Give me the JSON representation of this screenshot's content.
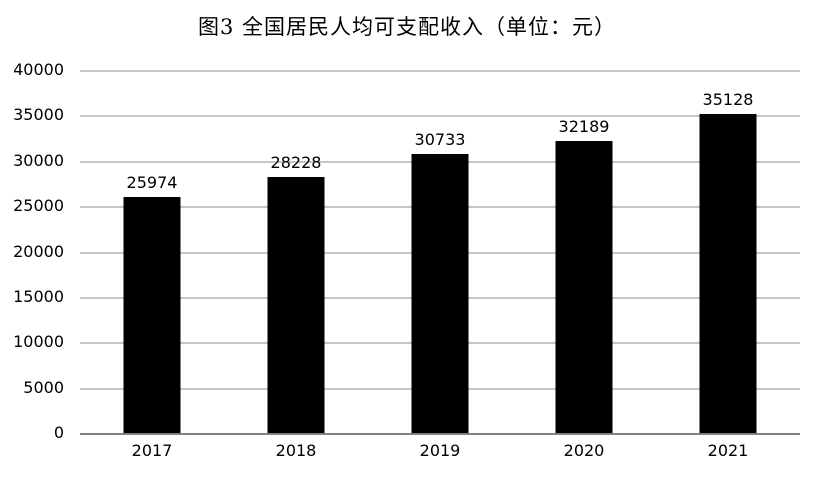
{
  "title": "图3 全国居民人均可支配收入（单位：元）",
  "colors": {
    "background": "#ffffff",
    "bar": "#000000",
    "gridline": "#8c8c8c",
    "axis_line": "#808080",
    "text": "#000000"
  },
  "chart_data": {
    "type": "bar",
    "title": "图3 全国居民人均可支配收入（单位：元）",
    "categories": [
      "2017",
      "2018",
      "2019",
      "2020",
      "2021"
    ],
    "values": [
      25974,
      28228,
      30733,
      32189,
      35128
    ],
    "data_labels": [
      "25974",
      "28228",
      "30733",
      "32189",
      "35128"
    ],
    "xlabel": "",
    "ylabel": "",
    "ylim": [
      0,
      40000
    ],
    "ytick_step": 5000,
    "yticks": [
      0,
      5000,
      10000,
      15000,
      20000,
      25000,
      30000,
      35000,
      40000
    ],
    "grid": "horizontal",
    "legend_position": "none"
  }
}
